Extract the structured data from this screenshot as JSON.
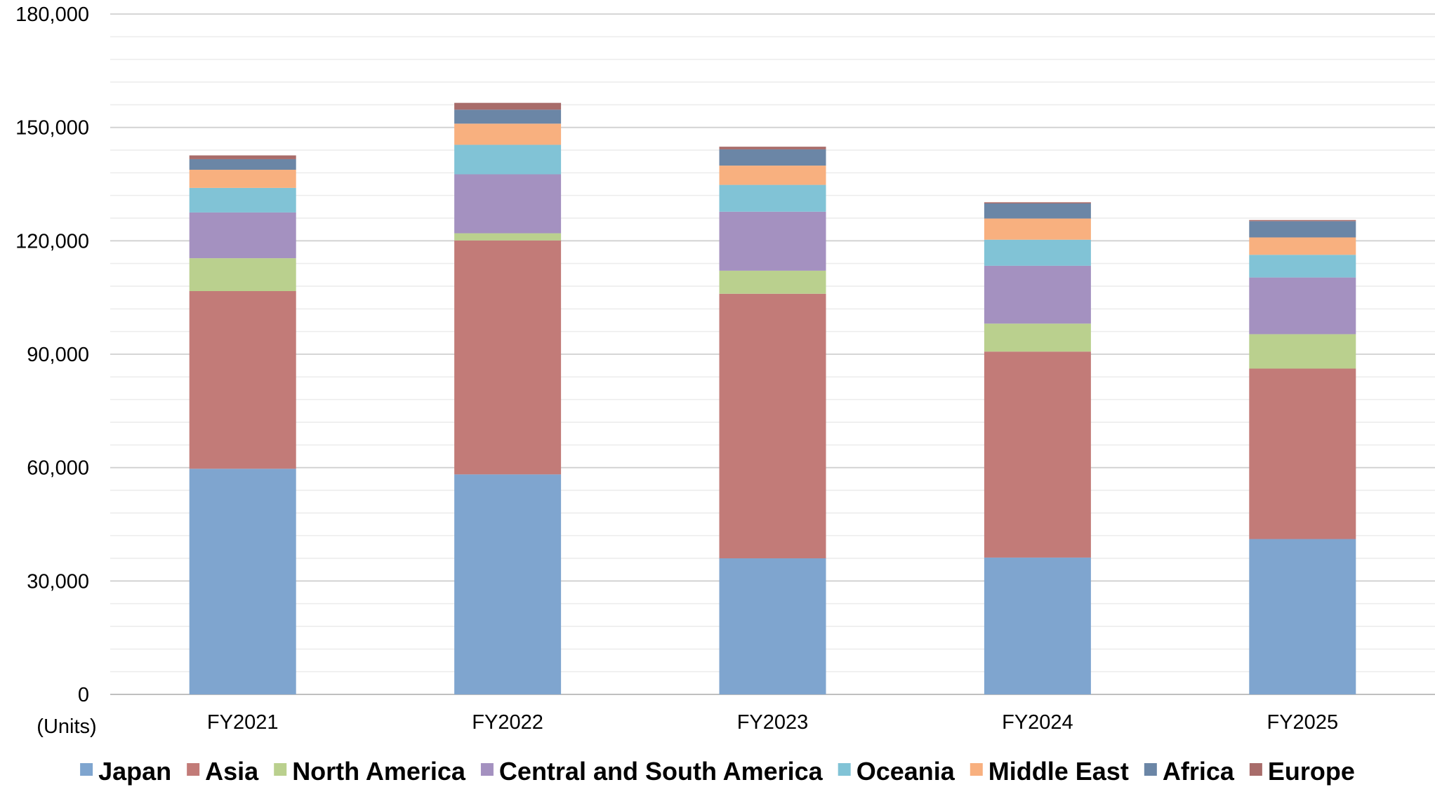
{
  "chart_data": {
    "type": "bar",
    "stacked": true,
    "unit_label": "(Units)",
    "categories": [
      "FY2021",
      "FY2022",
      "FY2023",
      "FY2024",
      "FY2025"
    ],
    "ylim": [
      0,
      180000
    ],
    "y_ticks": [
      {
        "value": 0,
        "label": "0"
      },
      {
        "value": 30000,
        "label": "30,000"
      },
      {
        "value": 60000,
        "label": "60,000"
      },
      {
        "value": 90000,
        "label": "90,000"
      },
      {
        "value": 120000,
        "label": "120,000"
      },
      {
        "value": 150000,
        "label": "150,000"
      },
      {
        "value": 180000,
        "label": "180,000"
      }
    ],
    "grid": true,
    "legend_position": "bottom",
    "series": [
      {
        "name": "Japan",
        "color": "#7fa5cf",
        "values": [
          59700,
          58200,
          36000,
          36200,
          41100
        ]
      },
      {
        "name": "Asia",
        "color": "#c27b78",
        "values": [
          47000,
          61900,
          70000,
          54500,
          45100
        ]
      },
      {
        "name": "North America",
        "color": "#bad08e",
        "values": [
          8700,
          1900,
          6100,
          7400,
          9100
        ]
      },
      {
        "name": "Central and South America",
        "color": "#a491c0",
        "values": [
          12100,
          15600,
          15600,
          15300,
          15000
        ]
      },
      {
        "name": "Oceania",
        "color": "#81c3d6",
        "values": [
          6500,
          7800,
          7100,
          6900,
          6000
        ]
      },
      {
        "name": "Middle East",
        "color": "#f8b07f",
        "values": [
          4800,
          5600,
          5100,
          5600,
          4600
        ]
      },
      {
        "name": "Africa",
        "color": "#6b86a6",
        "values": [
          2800,
          3700,
          4300,
          4000,
          4300
        ]
      },
      {
        "name": "Europe",
        "color": "#a86c6a",
        "values": [
          1000,
          1800,
          700,
          300,
          300
        ]
      }
    ]
  }
}
